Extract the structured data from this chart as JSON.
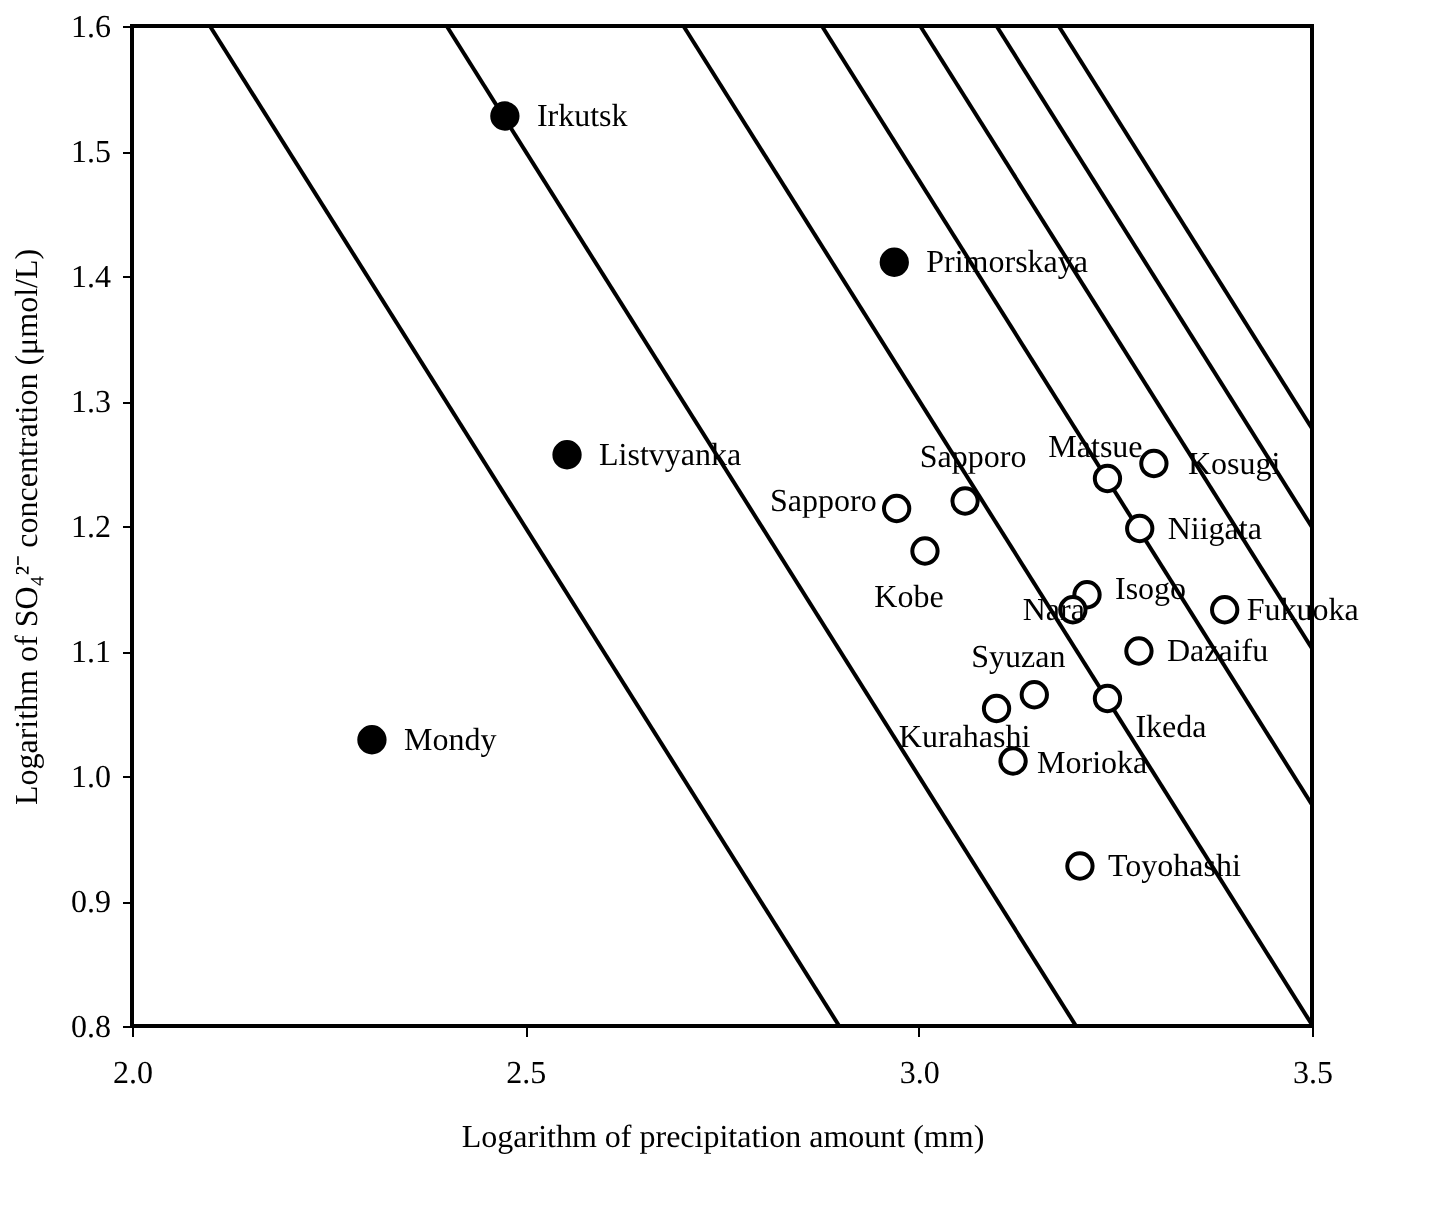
{
  "chart_data": {
    "type": "scatter",
    "xlabel": "Logarithm of precipitation amount (mm)",
    "ylabel": "Logarithm of SO₄²⁻ concentration (μmol/L)",
    "xlim": [
      2.0,
      3.5
    ],
    "ylim": [
      0.8,
      1.6
    ],
    "xticks": [
      {
        "value": 2.0,
        "label": "2.0"
      },
      {
        "value": 2.5,
        "label": "2.5"
      },
      {
        "value": 3.0,
        "label": "3.0"
      },
      {
        "value": 3.5,
        "label": "3.5"
      }
    ],
    "yticks": [
      {
        "value": 0.8,
        "label": "0.8"
      },
      {
        "value": 0.9,
        "label": "0.9"
      },
      {
        "value": 1.0,
        "label": "1.0"
      },
      {
        "value": 1.1,
        "label": "1.1"
      },
      {
        "value": 1.2,
        "label": "1.2"
      },
      {
        "value": 1.3,
        "label": "1.3"
      },
      {
        "value": 1.4,
        "label": "1.4"
      },
      {
        "value": 1.5,
        "label": "1.5"
      },
      {
        "value": 1.6,
        "label": "1.6"
      }
    ],
    "grid": false,
    "series": [
      {
        "type": "line",
        "marker": "none",
        "color": "#000000",
        "x": [
          2.099,
          2.899
        ],
        "values": [
          1.6,
          0.8
        ]
      },
      {
        "type": "line",
        "marker": "none",
        "color": "#000000",
        "x": [
          2.4,
          3.2
        ],
        "values": [
          1.6,
          0.8
        ]
      },
      {
        "type": "line",
        "marker": "none",
        "color": "#000000",
        "x": [
          2.701,
          3.5
        ],
        "values": [
          1.6,
          0.801
        ]
      },
      {
        "type": "line",
        "marker": "none",
        "color": "#000000",
        "x": [
          2.877,
          3.5
        ],
        "values": [
          1.6,
          0.977
        ]
      },
      {
        "type": "line",
        "marker": "none",
        "color": "#000000",
        "x": [
          3.002,
          3.5
        ],
        "values": [
          1.6,
          1.102
        ]
      },
      {
        "type": "line",
        "marker": "none",
        "color": "#000000",
        "x": [
          3.099,
          3.5
        ],
        "values": [
          1.6,
          1.199
        ]
      },
      {
        "type": "line",
        "marker": "none",
        "color": "#000000",
        "x": [
          3.178,
          3.5
        ],
        "values": [
          1.6,
          1.278
        ]
      },
      {
        "marker": "circle",
        "color": "#000000",
        "x": [
          2.474,
          2.969,
          2.553,
          2.305
        ],
        "values": [
          1.528,
          1.411,
          1.257,
          1.029
        ]
      },
      {
        "marker": "circle",
        "color": "#ffffff",
        "x": [
          2.972,
          3.059,
          3.24,
          3.299,
          3.281,
          3.008,
          3.214,
          3.196,
          3.389,
          3.28,
          3.147,
          3.099,
          3.24,
          3.12,
          3.205
        ],
        "values": [
          1.214,
          1.22,
          1.238,
          1.25,
          1.198,
          1.18,
          1.145,
          1.133,
          1.133,
          1.1,
          1.065,
          1.054,
          1.062,
          1.012,
          0.928
        ]
      }
    ],
    "annotations": [
      {
        "text": "Irkutsk",
        "x": 2.474,
        "y": 1.528
      },
      {
        "text": "Primorskaya",
        "x": 2.969,
        "y": 1.411
      },
      {
        "text": "Listvyanka",
        "x": 2.553,
        "y": 1.257
      },
      {
        "text": "Mondy",
        "x": 2.305,
        "y": 1.029
      },
      {
        "text": "Sapporo",
        "x": 2.972,
        "y": 1.214
      },
      {
        "text": "Sapporo",
        "x": 3.059,
        "y": 1.22
      },
      {
        "text": "Matsue",
        "x": 3.24,
        "y": 1.238
      },
      {
        "text": "Kosugi",
        "x": 3.299,
        "y": 1.25
      },
      {
        "text": "Niigata",
        "x": 3.281,
        "y": 1.198
      },
      {
        "text": "Kobe",
        "x": 3.008,
        "y": 1.18
      },
      {
        "text": "Isogo",
        "x": 3.214,
        "y": 1.145
      },
      {
        "text": "Nara",
        "x": 3.196,
        "y": 1.133
      },
      {
        "text": "Fukuoka",
        "x": 3.389,
        "y": 1.133
      },
      {
        "text": "Dazaifu",
        "x": 3.28,
        "y": 1.1
      },
      {
        "text": "Syuzan",
        "x": 3.147,
        "y": 1.065
      },
      {
        "text": "Kurahashi",
        "x": 3.099,
        "y": 1.054
      },
      {
        "text": "Ikeda",
        "x": 3.24,
        "y": 1.062
      },
      {
        "text": "Morioka",
        "x": 3.12,
        "y": 1.012
      },
      {
        "text": "Toyohashi",
        "x": 3.205,
        "y": 0.928
      }
    ]
  }
}
